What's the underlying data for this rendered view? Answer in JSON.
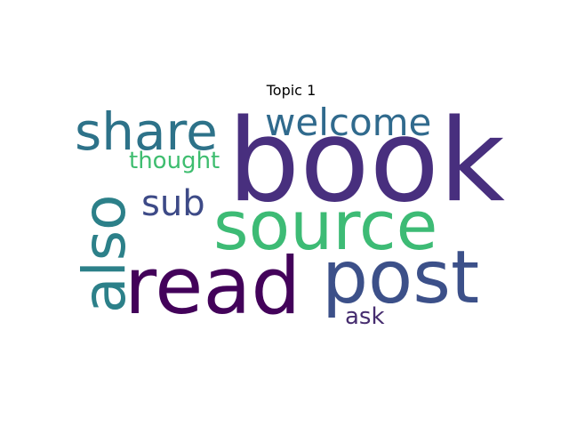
{
  "chart_data": {
    "type": "wordcloud",
    "title": "Topic 1",
    "words": [
      {
        "text": "book",
        "color": "#482f7e"
      },
      {
        "text": "source",
        "color": "#3dbb75"
      },
      {
        "text": "read",
        "color": "#43025a"
      },
      {
        "text": "post",
        "color": "#3c5089"
      },
      {
        "text": "share",
        "color": "#2d7289"
      },
      {
        "text": "also",
        "color": "#2c8089"
      },
      {
        "text": "welcome",
        "color": "#306a8d"
      },
      {
        "text": "sub",
        "color": "#3d4a87"
      },
      {
        "text": "thought",
        "color": "#3ebd6f"
      },
      {
        "text": "ask",
        "color": "#462d6f"
      }
    ]
  }
}
